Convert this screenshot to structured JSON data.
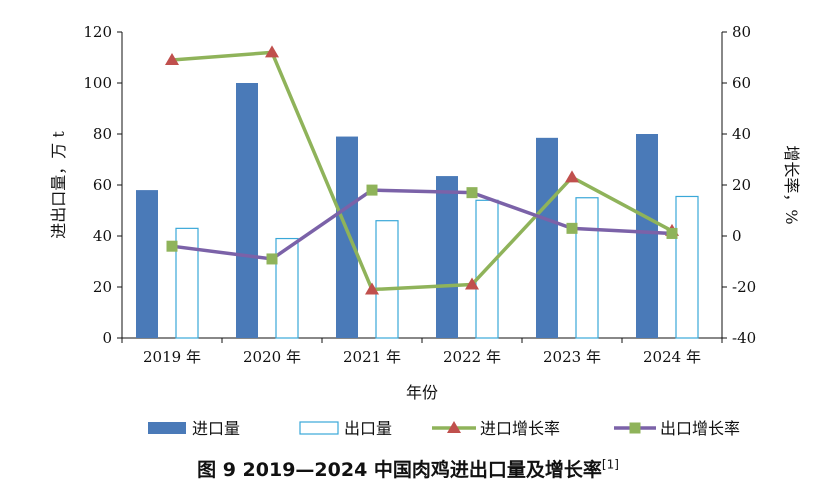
{
  "chart_data": {
    "type": "bar+line",
    "categories": [
      "2019 年",
      "2020 年",
      "2021 年",
      "2022 年",
      "2023 年",
      "2024 年"
    ],
    "bar_series": [
      {
        "name": "进口量",
        "values": [
          58,
          100,
          79,
          63.5,
          78.5,
          80
        ],
        "color": "#4a7ab8",
        "style": "filled"
      },
      {
        "name": "出口量",
        "values": [
          43,
          39,
          46,
          54,
          55,
          55.5
        ],
        "color": "#3aa8d8",
        "style": "outline"
      }
    ],
    "line_series": [
      {
        "name": "进口增长率",
        "values": [
          69,
          72,
          -21,
          -19,
          23,
          2
        ],
        "color": "#8fb35a",
        "marker": "triangle",
        "marker_color": "#c0504d"
      },
      {
        "name": "出口增长率",
        "values": [
          -4,
          -9,
          18,
          17,
          3,
          1
        ],
        "color": "#7b62a8",
        "marker": "square",
        "marker_color": "#8fb35a"
      }
    ],
    "y_left": {
      "label": "进出口量，万 t",
      "min": 0,
      "max": 120,
      "ticks": [
        0,
        20,
        40,
        60,
        80,
        100,
        120
      ]
    },
    "y_right": {
      "label": "增长率，%",
      "min": -40,
      "max": 80,
      "ticks": [
        -40,
        -20,
        0,
        20,
        40,
        60,
        80
      ]
    },
    "xlabel": "年份",
    "legend_position": "bottom",
    "grid": false
  },
  "caption": {
    "text": "图 9  2019—2024 中国肉鸡进出口量及增长率",
    "ref": "[1]"
  }
}
